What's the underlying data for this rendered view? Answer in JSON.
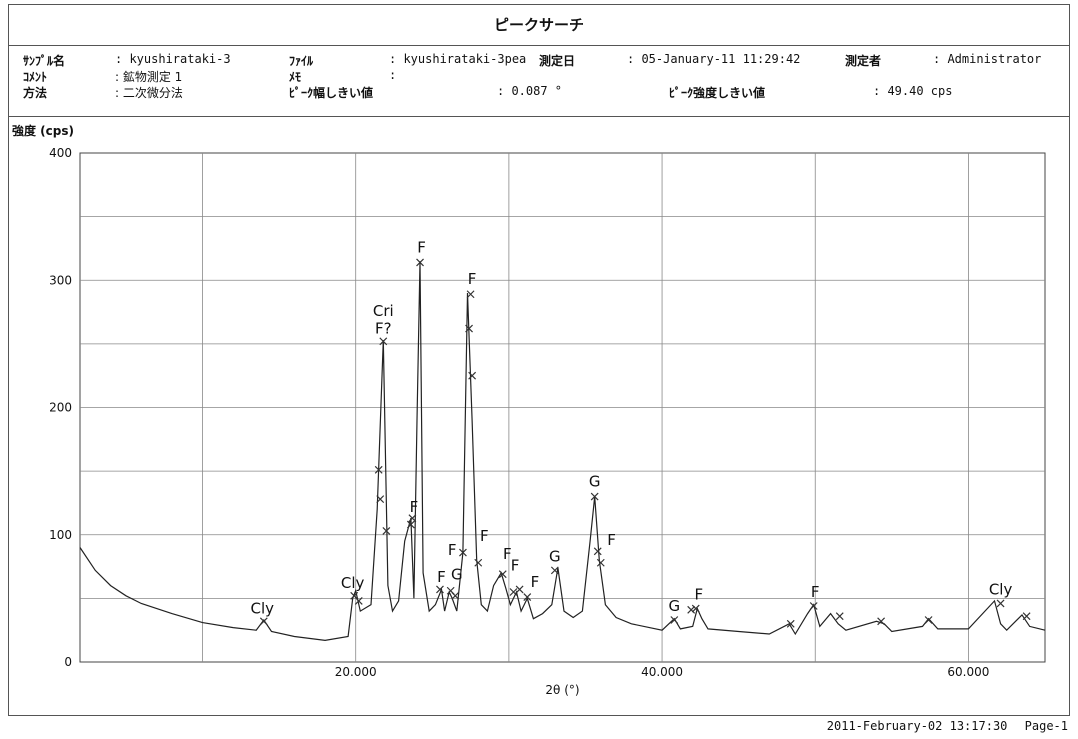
{
  "window": {
    "title": "ピークサーチ"
  },
  "meta": {
    "sample_label": "ｻﾝﾌﾟﾙ名",
    "sample_value": ": kyushirataki-3",
    "comment_label": "ｺﾒﾝﾄ",
    "comment_value": ": 鉱物測定 1",
    "method_label": "方法",
    "method_value": ": 二次微分法",
    "file_label": "ﾌｧｲﾙ",
    "file_value": ": kyushirataki-3pea",
    "memo_label": "ﾒﾓ",
    "memo_value": ":",
    "width_label": "ﾋﾟｰｸ幅しきい値",
    "width_value": ": 0.087 °",
    "date_label": "測定日",
    "date_value": ": 05-January-11 11:29:42",
    "operator_label": "測定者",
    "operator_value": ": Administrator",
    "intensity_label": "ﾋﾟｰｸ強度しきい値",
    "intensity_value": ": 49.40 cps"
  },
  "footer": {
    "timestamp": "2011-February-02 13:17:30",
    "page": "Page-1"
  },
  "colors": {
    "line": "#222222",
    "grid": "#888888",
    "marker": "#333333"
  },
  "chart_data": {
    "type": "line",
    "title": "",
    "ylabel": "強度 (cps)",
    "xlabel": "2θ (°)",
    "xlim": [
      2,
      65
    ],
    "ylim": [
      0,
      400
    ],
    "xticks": [
      20,
      40,
      60
    ],
    "xtick_labels": [
      "20.000",
      "40.000",
      "60.000"
    ],
    "yticks": [
      0,
      100,
      200,
      300,
      400
    ],
    "ytick_labels": [
      "0",
      "100",
      "200",
      "300",
      "400"
    ],
    "grid": true,
    "series": [
      {
        "x": [
          2,
          3,
          4,
          5,
          6,
          8,
          10,
          12,
          13.5,
          14,
          14.5,
          16,
          18,
          19.5,
          19.8,
          20,
          20.3,
          21,
          21.4,
          21.8,
          22.1,
          22.4,
          22.8,
          23.2,
          23.6,
          23.8,
          24.0,
          24.2,
          24.4,
          24.8,
          25.2,
          25.6,
          25.8,
          26.1,
          26.3,
          26.6,
          27.0,
          27.3,
          27.6,
          27.9,
          28.2,
          28.6,
          29.0,
          29.5,
          29.8,
          30.1,
          30.5,
          30.8,
          31.2,
          31.6,
          32.2,
          32.8,
          33.2,
          33.6,
          34.2,
          34.8,
          35.3,
          35.6,
          35.9,
          36.3,
          37,
          38,
          40,
          40.8,
          41.2,
          42,
          42.3,
          42.6,
          43,
          45,
          47,
          48.3,
          48.7,
          49.5,
          49.9,
          50.3,
          51,
          51.5,
          52,
          54,
          54.5,
          55,
          57,
          57.4,
          58,
          60,
          61.7,
          62.1,
          62.5,
          63.5,
          64,
          65
        ],
        "y": [
          90,
          72,
          60,
          52,
          46,
          38,
          31,
          27,
          25,
          33,
          24,
          20,
          17,
          20,
          50,
          56,
          40,
          45,
          120,
          253,
          60,
          40,
          48,
          95,
          113,
          50,
          190,
          315,
          70,
          40,
          45,
          57,
          40,
          55,
          50,
          40,
          86,
          290,
          190,
          80,
          45,
          40,
          60,
          70,
          58,
          45,
          55,
          40,
          50,
          34,
          38,
          45,
          74,
          40,
          35,
          40,
          95,
          130,
          80,
          45,
          35,
          30,
          25,
          34,
          26,
          28,
          42,
          34,
          26,
          24,
          22,
          30,
          22,
          38,
          45,
          28,
          38,
          30,
          25,
          32,
          30,
          24,
          28,
          34,
          26,
          26,
          48,
          30,
          25,
          37,
          28,
          25
        ]
      }
    ],
    "peak_markers": [
      {
        "x": 14.0,
        "y": 32
      },
      {
        "x": 19.9,
        "y": 52
      },
      {
        "x": 20.2,
        "y": 48
      },
      {
        "x": 21.5,
        "y": 151
      },
      {
        "x": 21.6,
        "y": 128
      },
      {
        "x": 21.8,
        "y": 252
      },
      {
        "x": 22.0,
        "y": 103
      },
      {
        "x": 23.6,
        "y": 108
      },
      {
        "x": 23.7,
        "y": 113
      },
      {
        "x": 24.2,
        "y": 314
      },
      {
        "x": 25.5,
        "y": 57
      },
      {
        "x": 26.2,
        "y": 56
      },
      {
        "x": 26.5,
        "y": 52
      },
      {
        "x": 27.0,
        "y": 86
      },
      {
        "x": 27.4,
        "y": 262
      },
      {
        "x": 27.5,
        "y": 289
      },
      {
        "x": 27.6,
        "y": 225
      },
      {
        "x": 28.0,
        "y": 78
      },
      {
        "x": 29.6,
        "y": 69
      },
      {
        "x": 30.3,
        "y": 55
      },
      {
        "x": 30.7,
        "y": 57
      },
      {
        "x": 31.2,
        "y": 51
      },
      {
        "x": 33.0,
        "y": 72
      },
      {
        "x": 35.6,
        "y": 130
      },
      {
        "x": 35.8,
        "y": 87
      },
      {
        "x": 36.0,
        "y": 78
      },
      {
        "x": 40.8,
        "y": 33
      },
      {
        "x": 41.9,
        "y": 41
      },
      {
        "x": 42.2,
        "y": 42
      },
      {
        "x": 48.4,
        "y": 30
      },
      {
        "x": 49.9,
        "y": 44
      },
      {
        "x": 51.6,
        "y": 36
      },
      {
        "x": 54.3,
        "y": 32
      },
      {
        "x": 57.4,
        "y": 33
      },
      {
        "x": 62.1,
        "y": 46
      },
      {
        "x": 63.8,
        "y": 36
      }
    ],
    "annotations": [
      {
        "text": "Cly",
        "x": 13.9,
        "y": 38
      },
      {
        "text": "Cly",
        "x": 19.8,
        "y": 58
      },
      {
        "text": "Cri",
        "x": 21.8,
        "y": 272
      },
      {
        "text": "F?",
        "x": 21.8,
        "y": 258
      },
      {
        "text": "F",
        "x": 23.8,
        "y": 118
      },
      {
        "text": "F",
        "x": 24.3,
        "y": 322
      },
      {
        "text": "F",
        "x": 25.6,
        "y": 63
      },
      {
        "text": "F",
        "x": 26.3,
        "y": 84
      },
      {
        "text": "G",
        "x": 26.6,
        "y": 65
      },
      {
        "text": "F",
        "x": 27.6,
        "y": 297
      },
      {
        "text": "F",
        "x": 28.4,
        "y": 95
      },
      {
        "text": "F",
        "x": 29.9,
        "y": 81
      },
      {
        "text": "F",
        "x": 30.4,
        "y": 72
      },
      {
        "text": "F",
        "x": 31.7,
        "y": 59
      },
      {
        "text": "G",
        "x": 33.0,
        "y": 79
      },
      {
        "text": "G",
        "x": 35.6,
        "y": 138
      },
      {
        "text": "F",
        "x": 36.7,
        "y": 92
      },
      {
        "text": "G",
        "x": 40.8,
        "y": 40
      },
      {
        "text": "F",
        "x": 42.4,
        "y": 49
      },
      {
        "text": "F",
        "x": 50.0,
        "y": 51
      },
      {
        "text": "Cly",
        "x": 62.1,
        "y": 53
      }
    ]
  }
}
